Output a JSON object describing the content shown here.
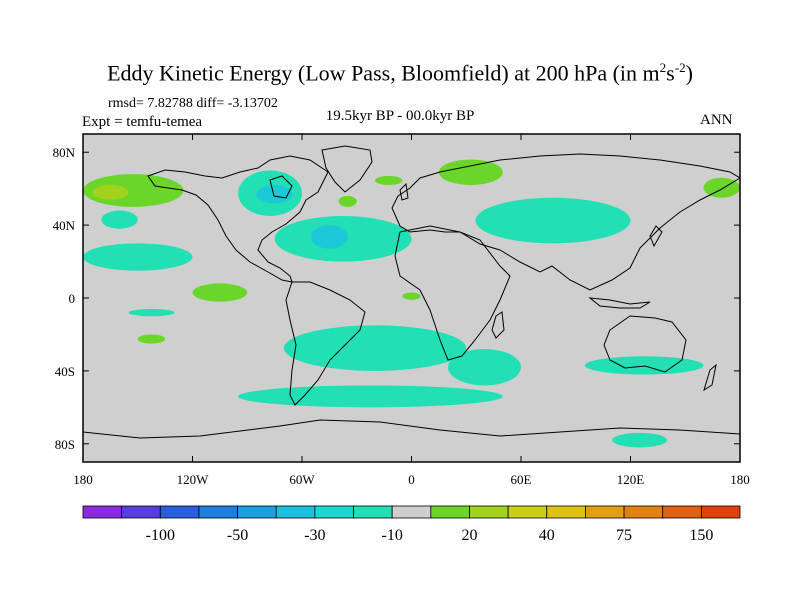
{
  "title_main": "Eddy Kinetic Energy (Low Pass, Bloomfield) at 200 hPa (in m",
  "title_sup1": "2",
  "title_s": "s",
  "title_sup2": "-2",
  "title_close": ")",
  "stats": "rmsd= 7.82788 diff= -3.13702",
  "expt": "Expt = temfu-temea",
  "center_label": "19.5kyr BP - 00.0kyr BP",
  "right_label": "ANN",
  "lat_ticks": [
    "80N",
    "40N",
    "0",
    "40S",
    "80S"
  ],
  "lat_values": [
    80,
    40,
    0,
    -40,
    -80
  ],
  "lon_ticks": [
    "180",
    "120W",
    "60W",
    "0",
    "60E",
    "120E",
    "180"
  ],
  "lon_values": [
    -180,
    -120,
    -60,
    0,
    60,
    120,
    180
  ],
  "colorbar": {
    "colors": [
      "#8a2be2",
      "#5a3de0",
      "#2a5fe0",
      "#1f7fe0",
      "#1c9fe0",
      "#1cbfe0",
      "#1cd8d0",
      "#22e0b4",
      "#cfcfcf",
      "#6ad62a",
      "#a2d21c",
      "#c8d014",
      "#dcc012",
      "#e0a010",
      "#e08210",
      "#e0620e",
      "#e0400c"
    ],
    "labels": [
      "-100",
      "-50",
      "-30",
      "-10",
      "20",
      "40",
      "75",
      "150"
    ],
    "label_boundaries": [
      2,
      4,
      6,
      8,
      10,
      12,
      14,
      16
    ]
  },
  "colors": {
    "background_field": "#cfcfcf",
    "neg_light": "#22e0b4",
    "neg_mid": "#1cc8d8",
    "pos_light": "#6ad62a",
    "pos_mid": "#a2d21c"
  },
  "chart_data": {
    "type": "heatmap",
    "projection": "cylindrical-equidistant",
    "lon_range": [
      -180,
      180
    ],
    "lat_range": [
      -90,
      90
    ],
    "field": "eddy kinetic energy difference",
    "units": "m2 s-2",
    "contour_levels": [
      -150,
      -100,
      -75,
      -50,
      -40,
      -30,
      -20,
      -10,
      10,
      20,
      30,
      40,
      50,
      75,
      100,
      150
    ],
    "anomalies": [
      {
        "sign": "negative",
        "level": -10,
        "lon": [
          -170,
          -150
        ],
        "lat": [
          38,
          48
        ]
      },
      {
        "sign": "negative",
        "level": -10,
        "lon": [
          -180,
          -120
        ],
        "lat": [
          15,
          30
        ]
      },
      {
        "sign": "negative",
        "level": -10,
        "lon": [
          -95,
          -60
        ],
        "lat": [
          45,
          70
        ]
      },
      {
        "sign": "negative",
        "level": -30,
        "lon": [
          -85,
          -65
        ],
        "lat": [
          52,
          62
        ]
      },
      {
        "sign": "negative",
        "level": -10,
        "lon": [
          -75,
          0
        ],
        "lat": [
          20,
          45
        ]
      },
      {
        "sign": "negative",
        "level": -30,
        "lon": [
          -55,
          -35
        ],
        "lat": [
          27,
          40
        ]
      },
      {
        "sign": "negative",
        "level": -10,
        "lon": [
          35,
          120
        ],
        "lat": [
          30,
          55
        ]
      },
      {
        "sign": "negative",
        "level": -10,
        "lon": [
          -70,
          30
        ],
        "lat": [
          -40,
          -15
        ]
      },
      {
        "sign": "negative",
        "level": -10,
        "lon": [
          -95,
          50
        ],
        "lat": [
          -60,
          -48
        ]
      },
      {
        "sign": "negative",
        "level": -10,
        "lon": [
          20,
          60
        ],
        "lat": [
          -48,
          -28
        ]
      },
      {
        "sign": "negative",
        "level": -10,
        "lon": [
          95,
          160
        ],
        "lat": [
          -42,
          -32
        ]
      },
      {
        "sign": "negative",
        "level": -10,
        "lon": [
          -155,
          -130
        ],
        "lat": [
          -10,
          -6
        ]
      },
      {
        "sign": "negative",
        "level": -10,
        "lon": [
          110,
          140
        ],
        "lat": [
          -82,
          -74
        ]
      },
      {
        "sign": "positive",
        "level": 20,
        "lon": [
          -180,
          -125
        ],
        "lat": [
          50,
          68
        ]
      },
      {
        "sign": "positive",
        "level": 40,
        "lon": [
          -175,
          -155
        ],
        "lat": [
          54,
          62
        ]
      },
      {
        "sign": "positive",
        "level": 20,
        "lon": [
          15,
          50
        ],
        "lat": [
          62,
          76
        ]
      },
      {
        "sign": "positive",
        "level": 20,
        "lon": [
          -20,
          -5
        ],
        "lat": [
          62,
          67
        ]
      },
      {
        "sign": "positive",
        "level": 20,
        "lon": [
          -40,
          -30
        ],
        "lat": [
          50,
          56
        ]
      },
      {
        "sign": "positive",
        "level": 20,
        "lon": [
          -120,
          -90
        ],
        "lat": [
          -2,
          8
        ]
      },
      {
        "sign": "positive",
        "level": 20,
        "lon": [
          -150,
          -135
        ],
        "lat": [
          -25,
          -20
        ]
      },
      {
        "sign": "positive",
        "level": 20,
        "lon": [
          -5,
          5
        ],
        "lat": [
          -1,
          3
        ]
      },
      {
        "sign": "positive",
        "level": 20,
        "lon": [
          160,
          180
        ],
        "lat": [
          55,
          66
        ]
      }
    ]
  }
}
